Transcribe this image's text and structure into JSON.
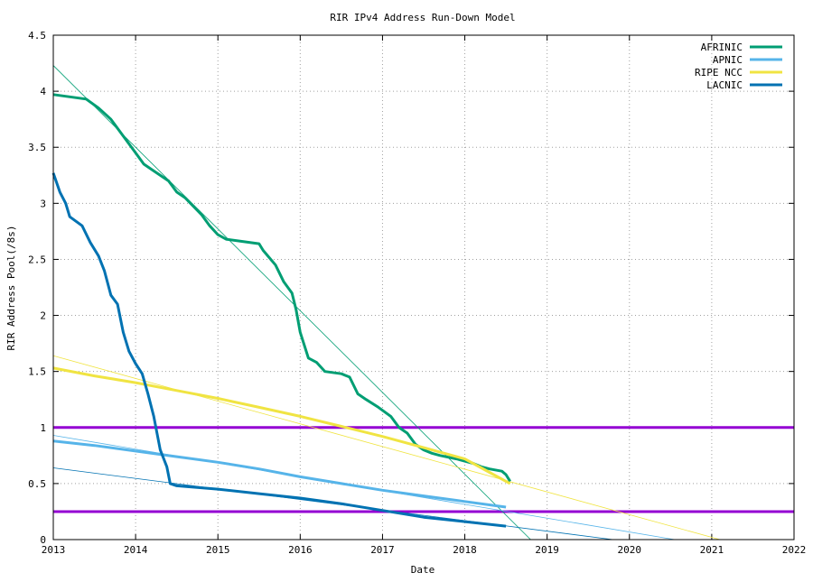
{
  "chart_data": {
    "type": "line",
    "title": "RIR IPv4 Address Run-Down Model",
    "xlabel": "Date",
    "ylabel": "RIR Address Pool(/8s)",
    "xlim": [
      2013,
      2022
    ],
    "ylim": [
      0,
      4.5
    ],
    "xticks": [
      "2013",
      "2014",
      "2015",
      "2016",
      "2017",
      "2018",
      "2019",
      "2020",
      "2021",
      "2022"
    ],
    "yticks": [
      "0",
      "0.5",
      "1",
      "1.5",
      "2",
      "2.5",
      "3",
      "3.5",
      "4",
      "4.5"
    ],
    "grid": true,
    "legend_position": "top-right",
    "thresholds": [
      {
        "y": 1.0,
        "color": "#9400d3"
      },
      {
        "y": 0.25,
        "color": "#9400d3"
      }
    ],
    "series": [
      {
        "name": "AFRINIC",
        "color": "#009e73",
        "x": [
          2013.0,
          2013.2,
          2013.4,
          2013.55,
          2013.7,
          2013.8,
          2013.9,
          2014.0,
          2014.1,
          2014.2,
          2014.4,
          2014.5,
          2014.6,
          2014.8,
          2014.9,
          2015.0,
          2015.1,
          2015.3,
          2015.5,
          2015.55,
          2015.7,
          2015.8,
          2015.9,
          2015.95,
          2016.0,
          2016.1,
          2016.2,
          2016.3,
          2016.5,
          2016.6,
          2016.7,
          2016.8,
          2016.95,
          2017.1,
          2017.2,
          2017.3,
          2017.4,
          2017.5,
          2017.6,
          2017.7,
          2017.9,
          2018.1,
          2018.2,
          2018.3,
          2018.45,
          2018.5,
          2018.55
        ],
        "y": [
          3.97,
          3.95,
          3.93,
          3.85,
          3.75,
          3.65,
          3.55,
          3.45,
          3.35,
          3.3,
          3.2,
          3.1,
          3.05,
          2.9,
          2.8,
          2.72,
          2.68,
          2.66,
          2.64,
          2.58,
          2.45,
          2.3,
          2.2,
          2.05,
          1.85,
          1.62,
          1.58,
          1.5,
          1.48,
          1.45,
          1.3,
          1.25,
          1.18,
          1.1,
          1.0,
          0.95,
          0.85,
          0.8,
          0.77,
          0.75,
          0.72,
          0.68,
          0.65,
          0.63,
          0.61,
          0.58,
          0.52
        ]
      },
      {
        "name": "APNIC",
        "color": "#56b4e9",
        "x": [
          2013.0,
          2013.5,
          2014.0,
          2014.5,
          2015.0,
          2015.5,
          2016.0,
          2016.5,
          2017.0,
          2017.5,
          2018.0,
          2018.5
        ],
        "y": [
          0.88,
          0.84,
          0.79,
          0.74,
          0.69,
          0.63,
          0.56,
          0.5,
          0.44,
          0.39,
          0.34,
          0.29
        ]
      },
      {
        "name": "RIPE NCC",
        "color": "#f0e442",
        "x": [
          2013.0,
          2013.5,
          2014.0,
          2014.5,
          2015.0,
          2015.5,
          2016.0,
          2016.5,
          2017.0,
          2017.5,
          2018.0,
          2018.25,
          2018.55
        ],
        "y": [
          1.53,
          1.46,
          1.4,
          1.33,
          1.26,
          1.18,
          1.1,
          1.01,
          0.92,
          0.82,
          0.72,
          0.62,
          0.5
        ]
      },
      {
        "name": "LACNIC",
        "color": "#0072b2",
        "x": [
          2013.0,
          2013.08,
          2013.15,
          2013.2,
          2013.35,
          2013.45,
          2013.55,
          2013.62,
          2013.7,
          2013.78,
          2013.85,
          2013.92,
          2014.0,
          2014.08,
          2014.15,
          2014.22,
          2014.3,
          2014.38,
          2014.42,
          2014.5,
          2015.0,
          2015.5,
          2016.0,
          2016.5,
          2017.0,
          2017.5,
          2018.0,
          2018.5
        ],
        "y": [
          3.27,
          3.1,
          3.0,
          2.88,
          2.8,
          2.65,
          2.53,
          2.4,
          2.18,
          2.1,
          1.85,
          1.68,
          1.57,
          1.48,
          1.3,
          1.1,
          0.8,
          0.65,
          0.5,
          0.48,
          0.45,
          0.41,
          0.37,
          0.32,
          0.26,
          0.2,
          0.16,
          0.12
        ]
      }
    ],
    "trend_lines": [
      {
        "color": "#009e73",
        "x": [
          2013.0,
          2018.8
        ],
        "y": [
          4.23,
          0.0
        ]
      },
      {
        "color": "#56b4e9",
        "x": [
          2013.0,
          2020.55
        ],
        "y": [
          0.93,
          0.0
        ]
      },
      {
        "color": "#f0e442",
        "x": [
          2013.0,
          2021.1
        ],
        "y": [
          1.64,
          0.0
        ]
      },
      {
        "color": "#0072b2",
        "x": [
          2013.0,
          2019.8
        ],
        "y": [
          0.64,
          0.0
        ]
      }
    ]
  }
}
